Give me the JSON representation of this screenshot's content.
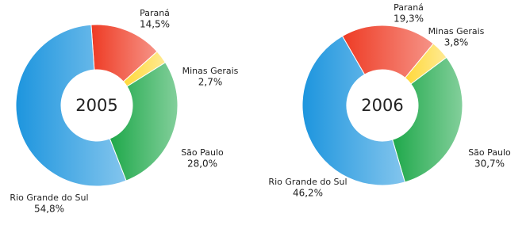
{
  "chart_data": [
    {
      "type": "pie",
      "title": "2005",
      "categories": [
        "Paraná",
        "Minas Gerais",
        "São Paulo",
        "Rio Grande do Sul"
      ],
      "values": [
        14.5,
        2.7,
        28.0,
        54.8
      ],
      "value_labels": [
        "14,5%",
        "2,7%",
        "28,0%",
        "54,8%"
      ],
      "colors": [
        "#ee3b24",
        "#ffd83a",
        "#1ea84a",
        "#1d95de"
      ]
    },
    {
      "type": "pie",
      "title": "2006",
      "categories": [
        "Paraná",
        "Minas Gerais",
        "São Paulo",
        "Rio Grande do Sul"
      ],
      "values": [
        19.3,
        3.8,
        30.7,
        46.2
      ],
      "value_labels": [
        "19,3%",
        "3,8%",
        "30,7%",
        "46,2%"
      ],
      "colors": [
        "#ee3b24",
        "#ffd83a",
        "#1ea84a",
        "#1d95de"
      ]
    }
  ]
}
